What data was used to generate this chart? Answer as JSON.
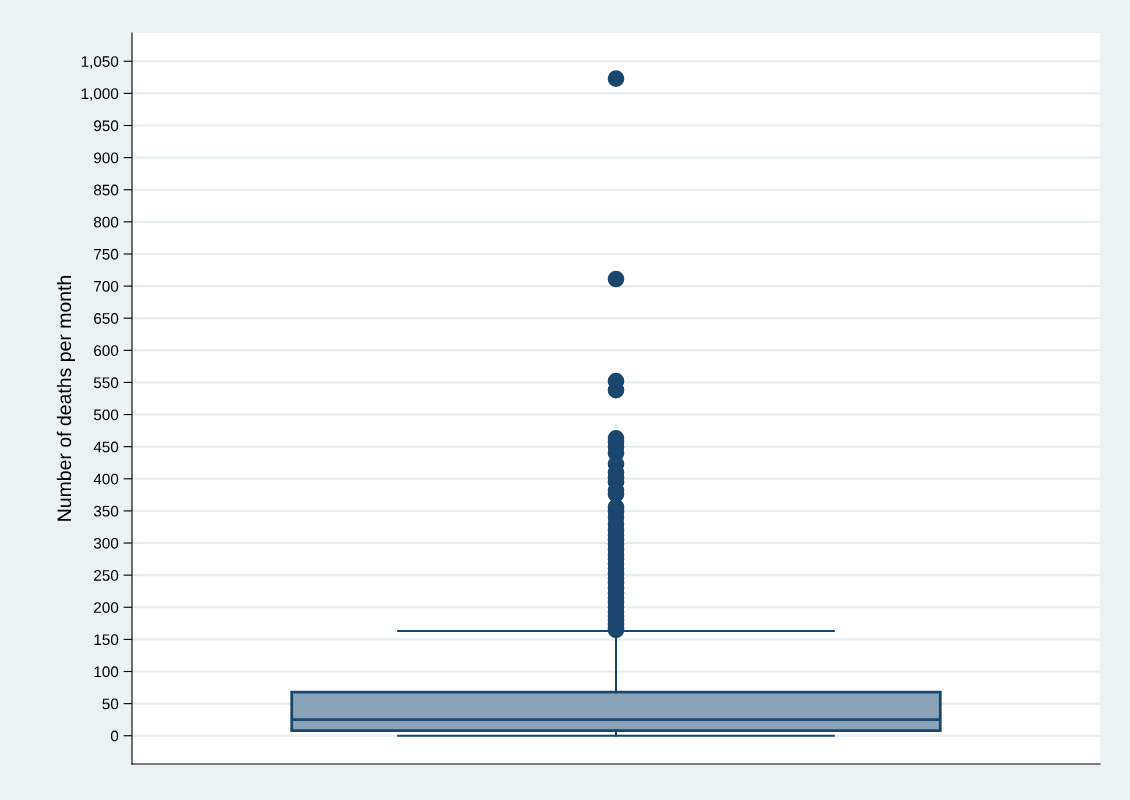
{
  "chart_data": {
    "type": "box",
    "ylabel": "Number of deaths per month",
    "categories": [
      null
    ],
    "boxes": [
      {
        "low": 0,
        "q1": 8,
        "median": 25,
        "q3": 68,
        "high": 163,
        "outliers": [
          1023,
          711,
          552,
          538,
          463,
          458,
          450,
          440,
          423,
          410,
          402,
          395,
          382,
          376,
          356,
          349,
          340,
          330,
          320,
          312,
          305,
          298,
          290,
          282,
          275,
          268,
          260,
          252,
          245,
          238,
          230,
          222,
          215,
          208,
          200,
          193,
          186,
          180,
          174,
          168,
          165
        ]
      }
    ],
    "color": "#1a476f",
    "ylim": [
      -44,
      1094
    ],
    "yticks": [
      0,
      50,
      100,
      150,
      200,
      250,
      300,
      350,
      400,
      450,
      500,
      550,
      600,
      650,
      700,
      750,
      800,
      850,
      900,
      950,
      {
        "value": 1000,
        "label": "1,000"
      },
      {
        "value": 1050,
        "label": "1,050"
      }
    ],
    "grid": "y",
    "tick_labels": "y"
  }
}
